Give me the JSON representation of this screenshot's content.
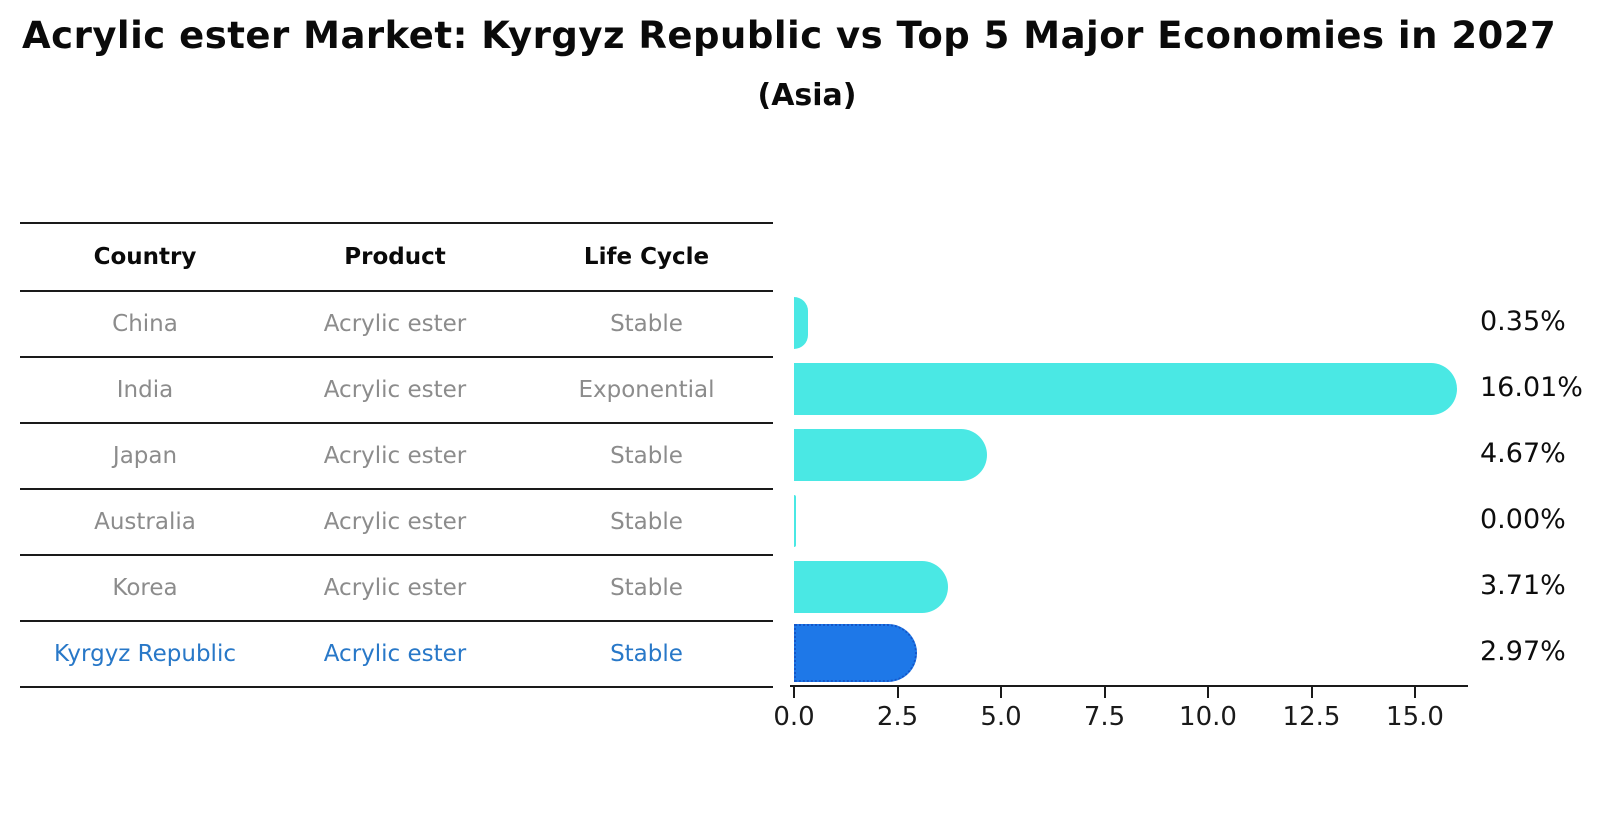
{
  "title": "Acrylic ester Market: Kyrgyz Republic vs Top 5 Major Economies in 2027",
  "subtitle": "(Asia)",
  "table": {
    "headers": [
      "Country",
      "Product",
      "Life Cycle"
    ],
    "rows": [
      {
        "country": "China",
        "product": "Acrylic ester",
        "life_cycle": "Stable",
        "highlight": false
      },
      {
        "country": "India",
        "product": "Acrylic ester",
        "life_cycle": "Exponential",
        "highlight": false
      },
      {
        "country": "Japan",
        "product": "Acrylic ester",
        "life_cycle": "Stable",
        "highlight": false
      },
      {
        "country": "Australia",
        "product": "Acrylic ester",
        "life_cycle": "Stable",
        "highlight": false
      },
      {
        "country": "Korea",
        "product": "Acrylic ester",
        "life_cycle": "Stable",
        "highlight": false
      },
      {
        "country": "Kyrgyz Republic",
        "product": "Acrylic ester",
        "life_cycle": "Stable",
        "highlight": true
      }
    ]
  },
  "chart_data": {
    "type": "bar",
    "orientation": "horizontal",
    "title": "Acrylic ester Market: Kyrgyz Republic vs Top 5 Major Economies in 2027 (Asia)",
    "categories": [
      "China",
      "India",
      "Japan",
      "Australia",
      "Korea",
      "Kyrgyz Republic"
    ],
    "values": [
      0.35,
      16.01,
      4.67,
      0.0,
      3.71,
      2.97
    ],
    "value_labels": [
      "0.35%",
      "16.01%",
      "4.67%",
      "0.00%",
      "3.71%",
      "2.97%"
    ],
    "highlight_index": 5,
    "xlabel": "",
    "ylabel": "",
    "xlim": [
      0,
      16.3
    ],
    "xticks": [
      0.0,
      2.5,
      5.0,
      7.5,
      10.0,
      12.5,
      15.0
    ],
    "xtick_labels": [
      "0.0",
      "2.5",
      "5.0",
      "7.5",
      "10.0",
      "12.5",
      "15.0"
    ],
    "grid": "off",
    "legend": "none",
    "colors": {
      "bar_default": "#4ae8e4",
      "bar_highlight": "#1e78e8",
      "bar_highlight_border": "#1456c8",
      "highlight_text": "#2878c8",
      "table_text": "#8c8c8c",
      "axis": "#1a1a1a"
    }
  }
}
